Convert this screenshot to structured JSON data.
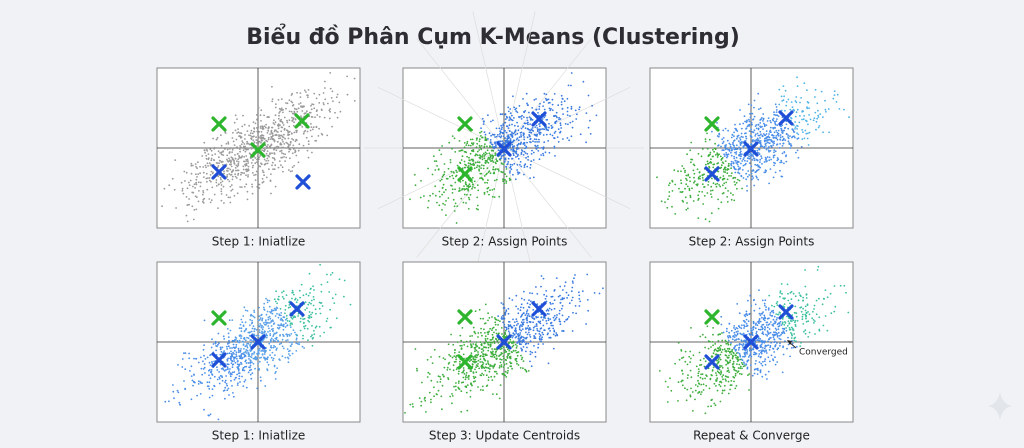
{
  "title": "Biểu đồ Phân Cụm K-Means (Clustering)",
  "panels": [
    {
      "caption": "Step 1: Iniatlize"
    },
    {
      "caption": "Step 2: Assign Points"
    },
    {
      "caption": "Step 2: Assign Points"
    },
    {
      "caption": "Step 1: Iniatlize"
    },
    {
      "caption": "Step 3: Update Centroids"
    },
    {
      "caption": "Repeat & Converge",
      "annotation": "Converged"
    }
  ]
}
